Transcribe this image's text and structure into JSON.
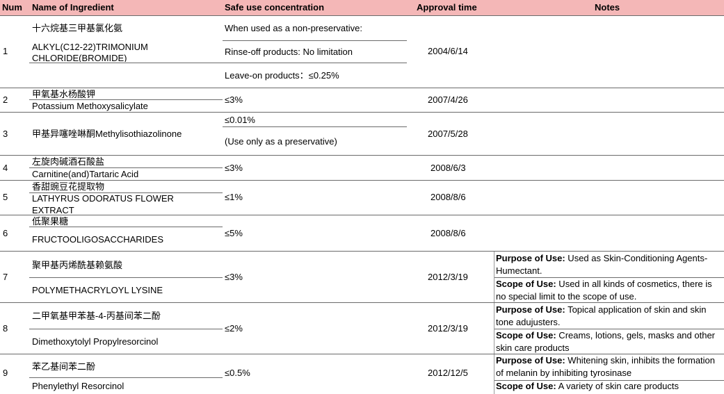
{
  "headers": {
    "num": "Num",
    "ingredient": "Name of Ingredient",
    "concentration": "Safe use concentration",
    "approval": "Approval time",
    "notes": "Notes"
  },
  "rows": [
    {
      "num": "1",
      "name_cn": "十六烷基三甲基氯化氨",
      "name_en_1": "ALKYL(C12-22)TRIMONIUM",
      "name_en_2": "CHLORIDE(BROMIDE)",
      "conc_1": "When used as a non-preservative:",
      "conc_2": "Rinse-off products: No limitation",
      "conc_3": "Leave-on products：≤0.25%",
      "date": "2004/6/14"
    },
    {
      "num": "2",
      "name_cn": "甲氧基水杨酸钾",
      "name_en": "Potassium Methoxysalicylate",
      "conc": "≤3%",
      "date": "2007/4/26"
    },
    {
      "num": "3",
      "name": "甲基异噻唑啉酮Methylisothiazolinone",
      "conc_1": "≤0.01%",
      "conc_2": "(Use only as a preservative)",
      "date": "2007/5/28"
    },
    {
      "num": "4",
      "name_cn": "左旋肉碱酒石酸盐",
      "name_en": "Carnitine(and)Tartaric Acid",
      "conc": "≤3%",
      "date": "2008/6/3"
    },
    {
      "num": "5",
      "name_cn": "香甜豌豆花提取物",
      "name_en_1": "LATHYRUS ODORATUS FLOWER",
      "name_en_2": "EXTRACT",
      "conc": "≤1%",
      "date": "2008/8/6"
    },
    {
      "num": "6",
      "name_cn": "低聚果糖",
      "name_en": "FRUCTOOLIGOSACCHARIDES",
      "conc": "≤5%",
      "date": "2008/8/6"
    },
    {
      "num": "7",
      "name_cn": "聚甲基丙烯酰基赖氨酸",
      "name_en": "POLYMETHACRYLOYL LYSINE",
      "conc": "≤3%",
      "date": "2012/3/19",
      "purpose_label": "Purpose of Use:",
      "purpose_text": " Used as Skin-Conditioning Agents-Humectant.",
      "scope_label": "Scope of Use:",
      "scope_text": " Used in all kinds of cosmetics, there is no special limit to the scope of use."
    },
    {
      "num": "8",
      "name_cn": "二甲氧基甲苯基-4-丙基间苯二酚",
      "name_en": "Dimethoxytolyl Propylresorcinol",
      "conc": "≤2%",
      "date": "2012/3/19",
      "purpose_label": "Purpose of Use:",
      "purpose_text": " Topical application of skin and skin tone adujusters.",
      "scope_label": "Scope of Use:",
      "scope_text": " Creams, lotions, gels, masks and other skin care products"
    },
    {
      "num": "9",
      "name_cn": "苯乙基间苯二酚",
      "name_en": "Phenylethyl Resorcinol",
      "conc": "≤0.5%",
      "date": "2012/12/5",
      "purpose_label": "Purpose of Use:",
      "purpose_text": " Whitening skin, inhibits the formation of melanin by inhibiting tyrosinase",
      "scope_label": "Scope of Use:",
      "scope_text": " A variety of skin care products"
    }
  ]
}
